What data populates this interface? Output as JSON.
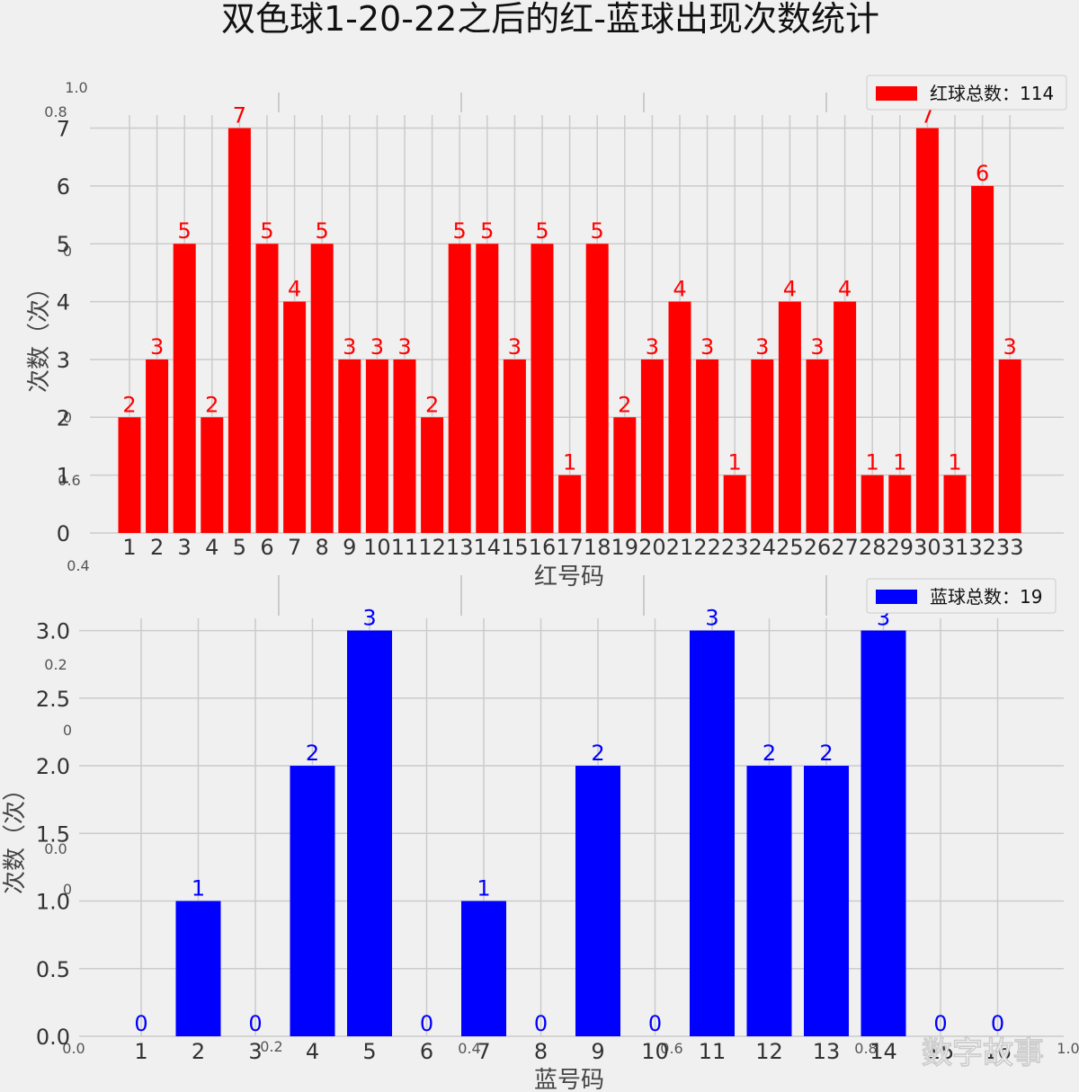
{
  "title": "双色球1-20-22之后的红-蓝球出现次数统计",
  "watermark": "数字故事",
  "ghost_axis": {
    "y_ticks": [
      "1.0",
      "0.8",
      "0.6",
      "0.4",
      "0.2",
      "0.0"
    ],
    "x_ticks": [
      "0.0",
      "0.2",
      "0.4",
      "0.6",
      "0.8",
      "1.0"
    ]
  },
  "colors": {
    "red": "#ff0000",
    "blue": "#0000ff",
    "grid": "#cbcbcb",
    "background": "#f0f0f0"
  },
  "chart_data": [
    {
      "type": "bar",
      "color": "#ff0000",
      "xlabel": "红号码",
      "ylabel": "次数（次）",
      "legend": "红球总数：114",
      "legend_position": "top-right",
      "grid": true,
      "ylim": [
        0,
        7.35
      ],
      "yticks": [
        "0",
        "1",
        "2",
        "3",
        "4",
        "5",
        "6",
        "7"
      ],
      "categories": [
        "1",
        "2",
        "3",
        "4",
        "5",
        "6",
        "7",
        "8",
        "9",
        "10",
        "11",
        "12",
        "13",
        "14",
        "15",
        "16",
        "17",
        "18",
        "19",
        "20",
        "21",
        "22",
        "23",
        "24",
        "25",
        "26",
        "27",
        "28",
        "29",
        "30",
        "31",
        "32",
        "33"
      ],
      "values": [
        2,
        3,
        5,
        2,
        7,
        5,
        4,
        5,
        3,
        3,
        3,
        2,
        5,
        5,
        3,
        5,
        1,
        5,
        2,
        3,
        4,
        3,
        1,
        3,
        4,
        3,
        4,
        1,
        1,
        7,
        1,
        6,
        3
      ]
    },
    {
      "type": "bar",
      "color": "#0000ff",
      "xlabel": "蓝号码",
      "ylabel": "次数（次）",
      "legend": "蓝球总数：19",
      "legend_position": "top-right",
      "grid": true,
      "ylim": [
        0,
        3.15
      ],
      "yticks": [
        "0.0",
        "0.5",
        "1.0",
        "1.5",
        "2.0",
        "2.5",
        "3.0"
      ],
      "categories": [
        "1",
        "2",
        "3",
        "4",
        "5",
        "6",
        "7",
        "8",
        "9",
        "10",
        "11",
        "12",
        "13",
        "14",
        "15",
        "16"
      ],
      "values": [
        0,
        1,
        0,
        2,
        3,
        0,
        1,
        0,
        2,
        0,
        3,
        2,
        2,
        3,
        0,
        0
      ]
    }
  ]
}
